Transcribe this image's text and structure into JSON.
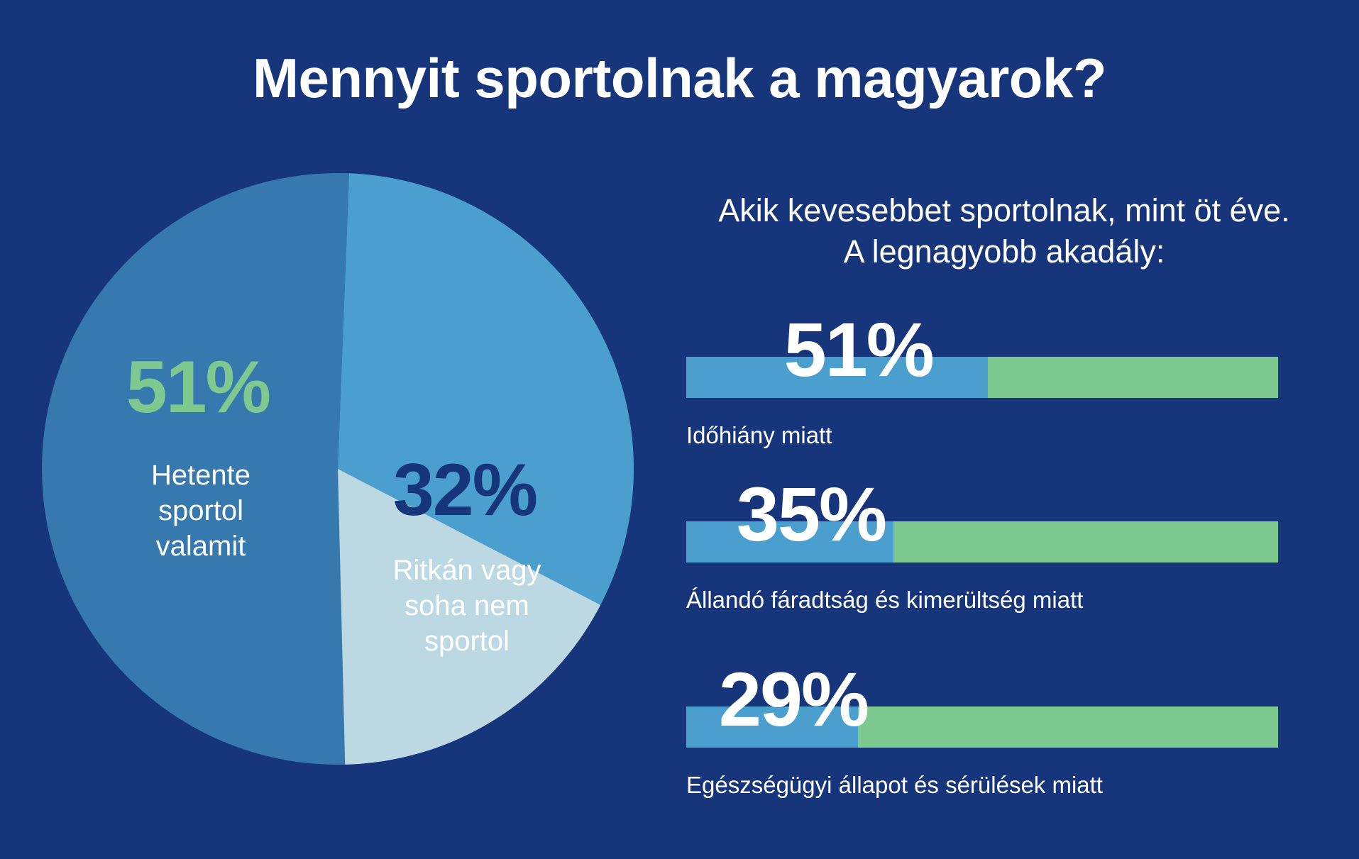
{
  "title": "Mennyit sportolnak a magyarok?",
  "colors": {
    "background": "#16357a",
    "pie_weekly": "#3579ae",
    "pie_rarely": "#4b9fcf",
    "pie_other": "#bcd9e3",
    "bar_fill": "#4b9fcf",
    "bar_track": "#7ec98f",
    "weekly_value": "#7ec98f",
    "rarely_value": "#16357a"
  },
  "chart_data": [
    {
      "type": "pie",
      "slices": [
        {
          "value": 51,
          "value_label": "51%",
          "label": "Hetente sportol valamit",
          "label_lines": [
            "Hetente",
            "sportol",
            "valamit"
          ],
          "color": "#3579ae"
        },
        {
          "value": 32,
          "value_label": "32%",
          "label": "Ritkán vagy soha nem sportol",
          "label_lines": [
            "Ritkán vagy",
            "soha nem",
            "sportol"
          ],
          "color": "#4b9fcf"
        },
        {
          "value": 17,
          "value_label": "",
          "label": "",
          "label_lines": [],
          "color": "#bcd9e3"
        }
      ]
    },
    {
      "type": "bar",
      "orientation": "horizontal",
      "title_lines": [
        "Akik kevesebbet sportolnak, mint öt éve.",
        "A legnagyobb akadály:"
      ],
      "categories": [
        "Időhiány miatt",
        "Állandó fáradtság és kimerültség miatt",
        "Egészségügyi állapot és sérülések miatt"
      ],
      "values": [
        51,
        35,
        29
      ],
      "value_labels": [
        "51%",
        "35%",
        "29%"
      ],
      "xlim": [
        0,
        100
      ]
    }
  ]
}
